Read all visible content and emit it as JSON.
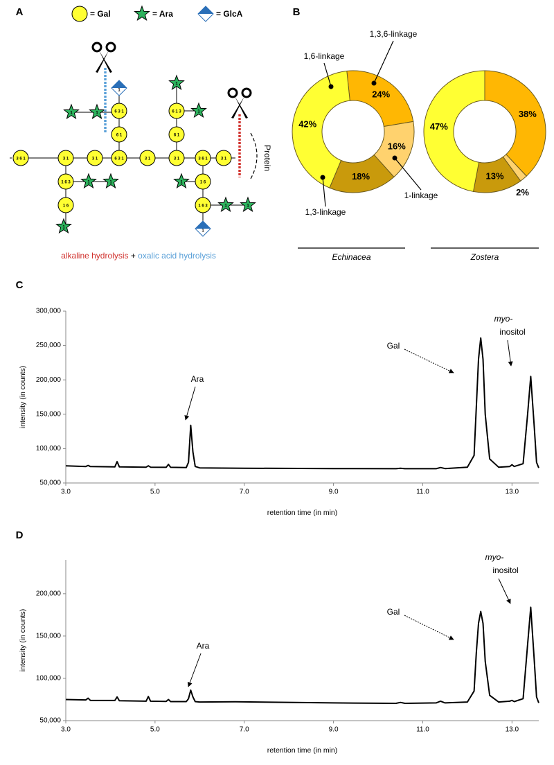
{
  "panel_labels": [
    "A",
    "B",
    "C",
    "D"
  ],
  "diagram": {
    "legend": [
      "= Gal",
      "= Ara",
      "= GlcA"
    ],
    "residues": [
      "3 6 1",
      "3 1",
      "3 1",
      "6 3 1",
      "3 1",
      "3 1",
      "3 6 1",
      "3 1",
      "6 1",
      "6 3 1",
      "6 1",
      "6 1 3",
      "1 6 3",
      "1 6",
      "1 6",
      "1 6 3",
      "1",
      "1",
      "1",
      "1",
      "1",
      "1",
      "1",
      "1",
      "1",
      "1",
      "1",
      "1"
    ],
    "caption": [
      "alkaline hydrolysis",
      "+",
      "oxalic acid hydrolysis"
    ],
    "protein": "Protein"
  },
  "chart_data": [
    {
      "type": "pie",
      "title": "Echinacea",
      "categories": [
        "1,3,6-linkage",
        "1-linkage",
        "1,3-linkage",
        "1,6-linkage"
      ],
      "values": [
        24,
        16,
        18,
        42
      ],
      "value_labels": [
        "24%",
        "16%",
        "18%",
        "42%"
      ],
      "colors": [
        "#ffb703",
        "#ffd26e",
        "#c99a0c",
        "#ffff33"
      ]
    },
    {
      "type": "pie",
      "title": "Zostera",
      "categories": [
        null,
        null,
        null,
        null
      ],
      "values": [
        38,
        2,
        13,
        47
      ],
      "value_labels": [
        "38%",
        "2%",
        "13%",
        "47%"
      ],
      "colors": [
        "#ffb703",
        "#ffd26e",
        "#c99a0c",
        "#ffff33"
      ]
    },
    {
      "type": "line",
      "xlabel": "retention time (in min)",
      "ylabel": "intensity (in counts)",
      "color": "#000000",
      "x": [
        3.0,
        3.45,
        3.5,
        3.55,
        4.1,
        4.15,
        4.2,
        4.8,
        4.85,
        4.9,
        5.25,
        5.3,
        5.35,
        5.7,
        5.75,
        5.8,
        5.85,
        5.9,
        6.0,
        7.0,
        9.0,
        10.4,
        10.5,
        10.6,
        11.3,
        11.4,
        11.5,
        12.0,
        12.15,
        12.2,
        12.25,
        12.3,
        12.35,
        12.4,
        12.5,
        12.7,
        12.95,
        13.0,
        13.05,
        13.25,
        13.35,
        13.42,
        13.5,
        13.55,
        13.6
      ],
      "y": [
        75000,
        74000,
        75500,
        74000,
        73500,
        81000,
        73500,
        73000,
        75000,
        73000,
        72800,
        77000,
        72800,
        72500,
        80000,
        134000,
        95000,
        74000,
        72000,
        71500,
        71000,
        70800,
        71500,
        70800,
        70800,
        72500,
        71000,
        73000,
        90000,
        160000,
        230000,
        261000,
        230000,
        150000,
        85000,
        73000,
        74000,
        76500,
        74000,
        78000,
        150000,
        205000,
        130000,
        80000,
        72000
      ],
      "xlim": [
        3,
        13.6
      ],
      "xticks": [
        {
          "value": 3,
          "label": "3.0"
        },
        {
          "value": 5,
          "label": "5.0"
        },
        {
          "value": 7,
          "label": "7.0"
        },
        {
          "value": 9,
          "label": "9.0"
        },
        {
          "value": 11,
          "label": "11.0"
        },
        {
          "value": 13,
          "label": "13.0"
        }
      ],
      "ylim": [
        50000,
        300000
      ],
      "yticks": [
        {
          "value": 50000,
          "label": "50,000"
        },
        {
          "value": 100000,
          "label": "100,000"
        },
        {
          "value": 150000,
          "label": "150,000"
        },
        {
          "value": 200000,
          "label": "200,000"
        },
        {
          "value": 250000,
          "label": "250,000"
        },
        {
          "value": 300000,
          "label": "300,000"
        }
      ],
      "annotations": [
        "Ara",
        "Gal",
        "myo-",
        "inositol"
      ]
    },
    {
      "type": "line",
      "xlabel": "retention time (in min)",
      "ylabel": "intensity (in counts)",
      "color": "#000000",
      "x": [
        3.0,
        3.45,
        3.5,
        3.55,
        4.1,
        4.15,
        4.2,
        4.8,
        4.85,
        4.9,
        5.25,
        5.3,
        5.35,
        5.7,
        5.75,
        5.8,
        5.85,
        5.9,
        6.0,
        6.8,
        9.0,
        10.4,
        10.5,
        10.6,
        11.3,
        11.4,
        11.5,
        12.0,
        12.15,
        12.2,
        12.25,
        12.3,
        12.35,
        12.4,
        12.5,
        12.7,
        12.95,
        13.0,
        13.05,
        13.25,
        13.35,
        13.42,
        13.5,
        13.55,
        13.6
      ],
      "y": [
        75000,
        74500,
        76500,
        74000,
        73800,
        78000,
        73500,
        73000,
        78500,
        73000,
        72800,
        75000,
        72500,
        72500,
        76000,
        86000,
        78000,
        72500,
        72000,
        72300,
        71000,
        70500,
        71500,
        70500,
        71000,
        73000,
        71000,
        72000,
        85000,
        130000,
        165000,
        179000,
        165000,
        120000,
        80000,
        72000,
        73000,
        74000,
        72500,
        76000,
        140000,
        184000,
        120000,
        78000,
        71000
      ],
      "xlim": [
        3,
        13.6
      ],
      "xticks": [
        {
          "value": 3,
          "label": "3.0"
        },
        {
          "value": 5,
          "label": "5.0"
        },
        {
          "value": 7,
          "label": "7.0"
        },
        {
          "value": 9,
          "label": "9.0"
        },
        {
          "value": 11,
          "label": "11.0"
        },
        {
          "value": 13,
          "label": "13.0"
        }
      ],
      "ylim": [
        50000,
        240000
      ],
      "yticks": [
        {
          "value": 50000,
          "label": "50,000"
        },
        {
          "value": 100000,
          "label": "100,000"
        },
        {
          "value": 150000,
          "label": "150,000"
        },
        {
          "value": 200000,
          "label": "200,000"
        }
      ],
      "annotations": [
        "Ara",
        "Gal",
        "myo-",
        "inositol"
      ]
    }
  ]
}
